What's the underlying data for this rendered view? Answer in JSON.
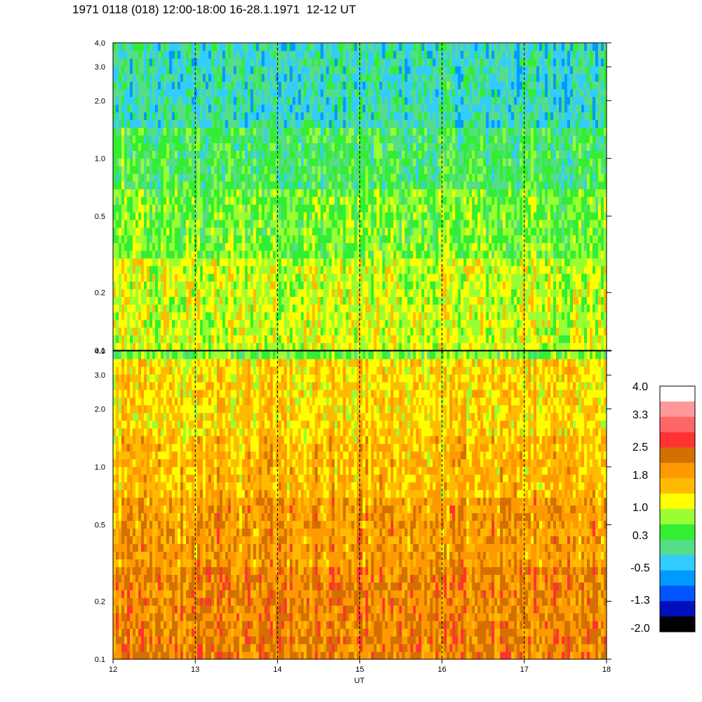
{
  "title": "1971 0118 (018) 12:00-18:00 16-28.1.1971  12-12 UT",
  "chart_data": [
    {
      "type": "heatmap",
      "panel": "top",
      "y_scale": "log",
      "ylim": [
        0.1,
        4.0
      ],
      "y_ticks": [
        "4.0",
        "3.0",
        "2.0",
        "1.0",
        "0.5",
        "0.2",
        "0.1"
      ],
      "y_tick_values": [
        4.0,
        3.0,
        2.0,
        1.0,
        0.5,
        0.2,
        0.1
      ],
      "xlim": [
        12,
        18
      ],
      "vlines_x": [
        13,
        14,
        15,
        16,
        17
      ],
      "dominant_levels_by_frequency": [
        {
          "freq_range": [
            0.1,
            0.3
          ],
          "level": 1.0
        },
        {
          "freq_range": [
            0.3,
            0.7
          ],
          "level": 0.65
        },
        {
          "freq_range": [
            0.7,
            1.5
          ],
          "level": 0.3
        },
        {
          "freq_range": [
            1.5,
            4.0
          ],
          "level": -0.1
        }
      ]
    },
    {
      "type": "heatmap",
      "panel": "bottom",
      "y_scale": "log",
      "ylim": [
        0.1,
        4.0
      ],
      "y_ticks": [
        "4.0",
        "3.0",
        "2.0",
        "1.0",
        "0.5",
        "0.2",
        "0.1"
      ],
      "y_tick_values": [
        4.0,
        3.0,
        2.0,
        1.0,
        0.5,
        0.2,
        0.1
      ],
      "xlim": [
        12,
        18
      ],
      "x_ticks": [
        "12",
        "13",
        "14",
        "15",
        "16",
        "17",
        "18"
      ],
      "x_tick_values": [
        12,
        13,
        14,
        15,
        16,
        17,
        18
      ],
      "xlabel": "UT",
      "vlines_x": [
        13,
        14,
        15,
        16,
        17
      ],
      "dominant_levels_by_frequency": [
        {
          "freq_range": [
            0.1,
            0.3
          ],
          "level": 2.1
        },
        {
          "freq_range": [
            0.3,
            0.7
          ],
          "level": 1.9
        },
        {
          "freq_range": [
            0.7,
            1.5
          ],
          "level": 1.6
        },
        {
          "freq_range": [
            1.5,
            3.5
          ],
          "level": 1.4
        },
        {
          "freq_range": [
            3.5,
            4.0
          ],
          "level": 0.6
        }
      ]
    }
  ],
  "colorbar": {
    "labels": [
      "4.0",
      "3.3",
      "2.5",
      "1.8",
      "1.0",
      "0.3",
      "-0.5",
      "-1.3",
      "-2.0"
    ],
    "label_values": [
      4.0,
      3.3,
      2.5,
      1.8,
      1.0,
      0.3,
      -0.5,
      -1.3,
      -2.0
    ],
    "colors_top_to_bottom": [
      "#ffffff",
      "#ff9999",
      "#ff6666",
      "#ff3333",
      "#d47000",
      "#ff9900",
      "#ffbb00",
      "#ffff00",
      "#99ff33",
      "#33ee33",
      "#55dd88",
      "#33ccff",
      "#0099ff",
      "#0055ff",
      "#0011bb",
      "#000000"
    ]
  }
}
